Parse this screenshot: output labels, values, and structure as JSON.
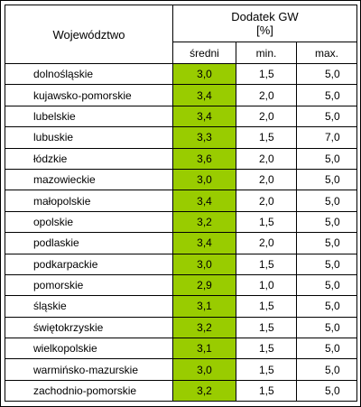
{
  "table": {
    "header": {
      "region_label": "Województwo",
      "group_title": "Dodatek GW",
      "group_unit": "[%]",
      "col_avg": "średni",
      "col_min": "min.",
      "col_max": "max."
    },
    "rows": [
      {
        "region": "dolnośląskie",
        "avg": "3,0",
        "min": "1,5",
        "max": "5,0"
      },
      {
        "region": "kujawsko-pomorskie",
        "avg": "3,4",
        "min": "2,0",
        "max": "5,0"
      },
      {
        "region": "lubelskie",
        "avg": "3,4",
        "min": "2,0",
        "max": "5,0"
      },
      {
        "region": "lubuskie",
        "avg": "3,3",
        "min": "1,5",
        "max": "7,0"
      },
      {
        "region": "łódzkie",
        "avg": "3,6",
        "min": "2,0",
        "max": "5,0"
      },
      {
        "region": "mazowieckie",
        "avg": "3,0",
        "min": "2,0",
        "max": "5,0"
      },
      {
        "region": "małopolskie",
        "avg": "3,4",
        "min": "2,0",
        "max": "5,0"
      },
      {
        "region": "opolskie",
        "avg": "3,2",
        "min": "1,5",
        "max": "5,0"
      },
      {
        "region": "podlaskie",
        "avg": "3,4",
        "min": "2,0",
        "max": "5,0"
      },
      {
        "region": "podkarpackie",
        "avg": "3,0",
        "min": "1,5",
        "max": "5,0"
      },
      {
        "region": "pomorskie",
        "avg": "2,9",
        "min": "1,0",
        "max": "5,0"
      },
      {
        "region": "śląskie",
        "avg": "3,1",
        "min": "1,5",
        "max": "5,0"
      },
      {
        "region": "świętokrzyskie",
        "avg": "3,2",
        "min": "1,5",
        "max": "5,0"
      },
      {
        "region": "wielkopolskie",
        "avg": "3,1",
        "min": "1,5",
        "max": "5,0"
      },
      {
        "region": "warmińsko-mazurskie",
        "avg": "3,0",
        "min": "1,5",
        "max": "5,0"
      },
      {
        "region": "zachodnio-pomorskie",
        "avg": "3,2",
        "min": "1,5",
        "max": "5,0"
      }
    ]
  },
  "colors": {
    "avg_highlight": "#99cc00",
    "border": "#000000",
    "background": "#ffffff"
  }
}
